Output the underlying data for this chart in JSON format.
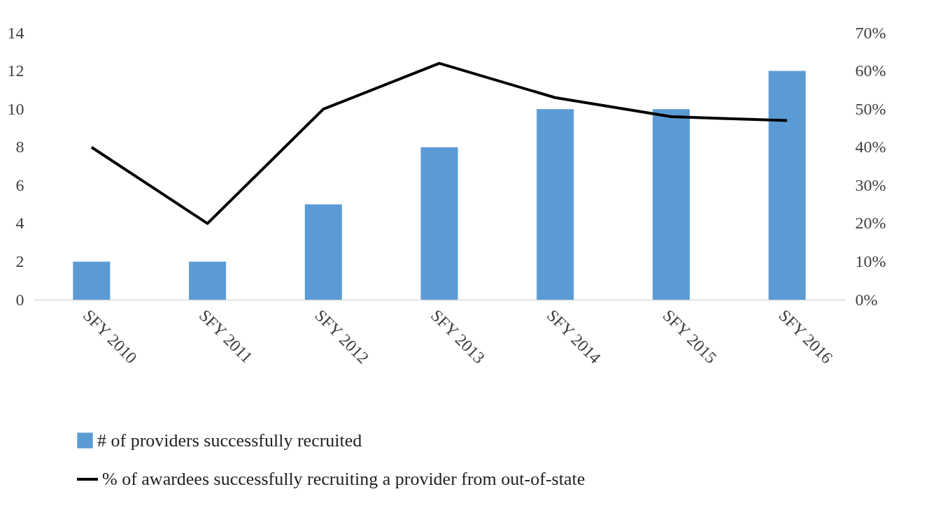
{
  "chart_data": {
    "type": "bar",
    "categories": [
      "SFY 2010",
      "SFY 2011",
      "SFY 2012",
      "SFY 2013",
      "SFY 2014",
      "SFY 2015",
      "SFY 2016"
    ],
    "series": [
      {
        "name": "# of providers successfully recruited",
        "color": "#5b9bd5",
        "values": [
          2,
          2,
          5,
          8,
          10,
          10,
          12
        ]
      },
      {
        "name": "% of awardees successfully recruiting a provider from out-of-state",
        "type": "line",
        "axis": "y2",
        "color": "#000000",
        "values": [
          40,
          20,
          50,
          62,
          53,
          48,
          47
        ]
      }
    ],
    "ylim": [
      0,
      14
    ],
    "yticks": [
      0,
      2,
      4,
      6,
      8,
      10,
      12,
      14
    ],
    "y2lim": [
      0,
      70
    ],
    "y2ticks": [
      {
        "value": 0,
        "label": "0%"
      },
      {
        "value": 10,
        "label": "10%"
      },
      {
        "value": 20,
        "label": "20%"
      },
      {
        "value": 30,
        "label": "30%"
      },
      {
        "value": 40,
        "label": "40%"
      },
      {
        "value": 50,
        "label": "50%"
      },
      {
        "value": 60,
        "label": "60%"
      },
      {
        "value": 70,
        "label": "70%"
      }
    ],
    "grid": false,
    "legend": "bottom",
    "marker": "none",
    "line_style": "solid"
  }
}
